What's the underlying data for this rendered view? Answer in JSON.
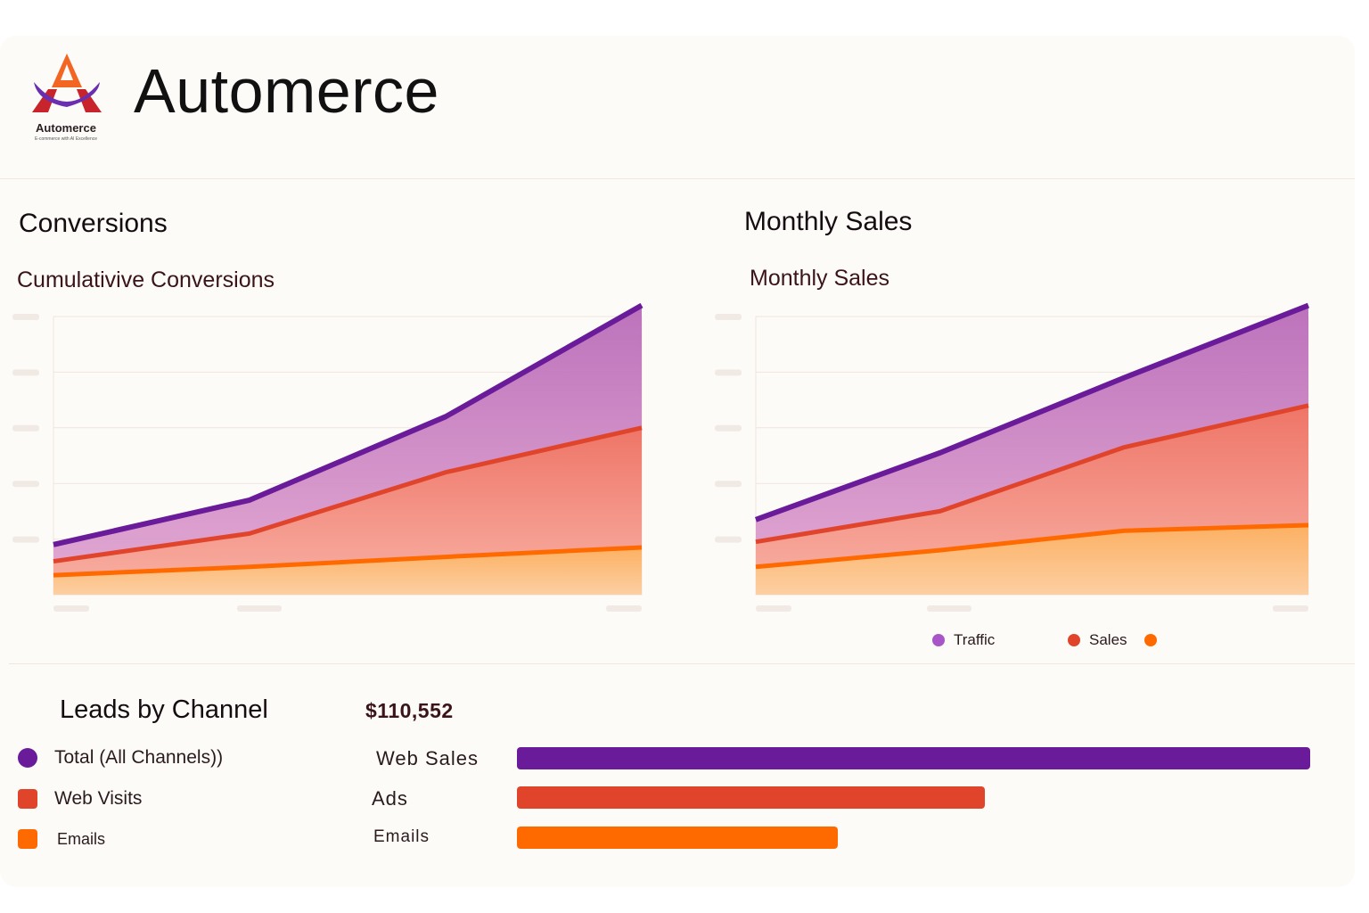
{
  "app": {
    "title": "Automerce",
    "logo_name": "Automerce",
    "logo_tagline": "E-commerce with AI Excellence"
  },
  "colors": {
    "purple": "#6a1b9a",
    "red": "#e0452b",
    "orange": "#ff6a00",
    "purple_fill": "#c37ab8",
    "red_fill": "#f48a78",
    "orange_fill": "#fdc07a"
  },
  "left_panel": {
    "title": "Conversions"
  },
  "right_panel": {
    "title": "Monthly Sales"
  },
  "chart_data": [
    {
      "type": "area",
      "title": "Cumulativive Conversions",
      "x": [
        0,
        1,
        2,
        3
      ],
      "ylim": [
        0,
        5
      ],
      "grid": true,
      "series": [
        {
          "values": [
            0.9,
            1.7,
            3.2,
            5.2
          ]
        },
        {
          "values": [
            0.6,
            1.1,
            2.2,
            3.0
          ]
        },
        {
          "values": [
            0.35,
            0.5,
            0.68,
            0.85
          ]
        }
      ]
    },
    {
      "type": "area",
      "title": "Monthly Sales",
      "x": [
        0,
        1,
        2,
        3
      ],
      "ylim": [
        0,
        5
      ],
      "grid": true,
      "legend": "bottom",
      "series": [
        {
          "name": "Traffic",
          "values": [
            1.35,
            2.55,
            3.9,
            5.2
          ]
        },
        {
          "name": "Sales",
          "values": [
            0.95,
            1.5,
            2.65,
            3.4
          ]
        },
        {
          "values": [
            0.5,
            0.8,
            1.15,
            1.25
          ]
        }
      ]
    },
    {
      "type": "bar",
      "title": "$110,552",
      "orientation": "horizontal",
      "categories": [
        "Web Sales",
        "Ads",
        "Emails"
      ],
      "values": [
        100,
        59,
        40.5
      ],
      "xlim": [
        0,
        100
      ]
    }
  ],
  "leads": {
    "title": "Leads by Channel",
    "items": [
      {
        "label": "Total (All Channels))",
        "marker": "circle",
        "color": "#6a1b9a"
      },
      {
        "label": "Web Visits",
        "marker": "square",
        "color": "#e0452b"
      },
      {
        "label": "Emails",
        "marker": "square",
        "color": "#ff6a00"
      }
    ]
  }
}
